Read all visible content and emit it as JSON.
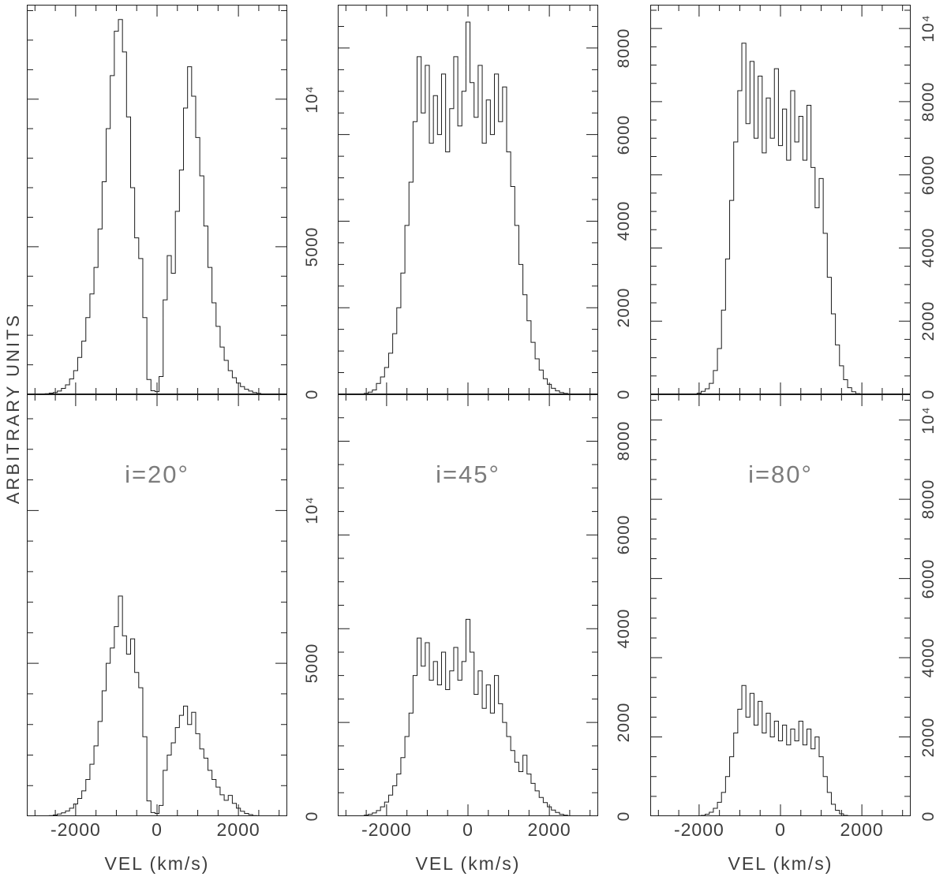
{
  "figure": {
    "ylabel": "ARBITRARY UNITS",
    "xlabel": "VEL (km/s)",
    "xlim": [
      -3200,
      3200
    ],
    "x_major": 2000,
    "x_minor": 500,
    "x_ticks": [
      {
        "value": -2000,
        "label": "-2000"
      },
      {
        "value": 0,
        "label": "0"
      },
      {
        "value": 2000,
        "label": "2000"
      }
    ],
    "line_color": "#1b1b1b",
    "text_color": "#3d3d3d",
    "annotation_color": "#7c7c7c"
  },
  "chart_data": {
    "type": "line",
    "title": "",
    "xlabel": "VEL (km/s)",
    "ylabel": "ARBITRARY UNITS",
    "x_start": -3000,
    "x_step": 100,
    "xlim": [
      -3200,
      3200
    ],
    "grid": false,
    "legend": false,
    "panels": [
      {
        "name": "i=20 high-flux profile",
        "row": 0,
        "col": 0,
        "annotation": "",
        "ylim": [
          0,
          13200
        ],
        "ymax": 13200,
        "y_major": 5000,
        "y_minor": 1000,
        "y_ticks": [
          {
            "value": 0,
            "label": "0"
          },
          {
            "value": 5000,
            "label": "5000"
          },
          {
            "value": 10000,
            "label": "10⁴"
          }
        ],
        "values": [
          0,
          0,
          0,
          20,
          40,
          60,
          110,
          200,
          320,
          520,
          800,
          1250,
          1800,
          2600,
          3400,
          4300,
          5600,
          7200,
          9000,
          10800,
          12300,
          12700,
          11600,
          9400,
          7000,
          5300,
          4600,
          2600,
          500,
          120,
          90,
          600,
          3200,
          4700,
          4100,
          6200,
          7600,
          9700,
          11100,
          10100,
          8700,
          7400,
          5700,
          4300,
          3100,
          2300,
          1600,
          1150,
          800,
          560,
          380,
          260,
          170,
          110,
          60,
          30,
          10,
          0,
          0,
          0,
          0
        ]
      },
      {
        "name": "i=45 high-flux profile",
        "row": 0,
        "col": 1,
        "annotation": "",
        "ylim": [
          0,
          9000
        ],
        "ymax": 9000,
        "y_major": 2000,
        "y_minor": 500,
        "y_ticks": [
          {
            "value": 0,
            "label": "0"
          },
          {
            "value": 2000,
            "label": "2000"
          },
          {
            "value": 4000,
            "label": "4000"
          },
          {
            "value": 6000,
            "label": "6000"
          },
          {
            "value": 8000,
            "label": "8000"
          }
        ],
        "values": [
          0,
          0,
          0,
          0,
          0,
          20,
          50,
          100,
          250,
          400,
          620,
          950,
          1400,
          2000,
          2800,
          3900,
          4900,
          6300,
          7800,
          6500,
          7600,
          5800,
          6900,
          6000,
          7400,
          5600,
          6600,
          7800,
          6200,
          7000,
          8600,
          7200,
          6400,
          7600,
          5800,
          6800,
          6000,
          7400,
          6300,
          7100,
          5600,
          4800,
          3900,
          3000,
          2300,
          1700,
          1200,
          820,
          560,
          360,
          230,
          140,
          80,
          40,
          20,
          0,
          0,
          0,
          0,
          0,
          0
        ]
      },
      {
        "name": "i=80 high-flux profile",
        "row": 0,
        "col": 2,
        "annotation": "",
        "ylim": [
          0,
          10650
        ],
        "ymax": 10650,
        "y_major": 2000,
        "y_minor": 500,
        "y_ticks": [
          {
            "value": 0,
            "label": "0"
          },
          {
            "value": 2000,
            "label": "2000"
          },
          {
            "value": 4000,
            "label": "4000"
          },
          {
            "value": 6000,
            "label": "6000"
          },
          {
            "value": 8000,
            "label": "8000"
          },
          {
            "value": 10000,
            "label": "10⁴"
          }
        ],
        "values": [
          0,
          0,
          0,
          0,
          0,
          0,
          0,
          0,
          0,
          0,
          30,
          80,
          150,
          300,
          650,
          1250,
          2300,
          3700,
          5300,
          6900,
          8300,
          9600,
          7400,
          9100,
          7000,
          8700,
          6600,
          8100,
          7000,
          8900,
          6800,
          7800,
          6400,
          8300,
          6900,
          7600,
          6400,
          7900,
          6200,
          5100,
          5900,
          4400,
          3200,
          2200,
          1350,
          780,
          400,
          180,
          70,
          20,
          0,
          0,
          0,
          0,
          0,
          0,
          0,
          0,
          0,
          0,
          0
        ]
      },
      {
        "name": "i=20 low-flux profile",
        "row": 1,
        "col": 0,
        "annotation": "i=20°",
        "ylim": [
          0,
          13800
        ],
        "ymax": 13800,
        "y_major": 5000,
        "y_minor": 1000,
        "y_ticks": [
          {
            "value": 0,
            "label": "0"
          },
          {
            "value": 5000,
            "label": "5000"
          },
          {
            "value": 10000,
            "label": "10⁴"
          }
        ],
        "values": [
          0,
          0,
          0,
          0,
          20,
          40,
          70,
          110,
          170,
          260,
          400,
          580,
          830,
          1200,
          1700,
          2300,
          3100,
          4100,
          5000,
          5500,
          6200,
          7200,
          5900,
          5300,
          5800,
          4700,
          4200,
          2600,
          500,
          120,
          90,
          350,
          1500,
          2000,
          2400,
          2900,
          3300,
          3600,
          3000,
          3400,
          2700,
          2200,
          1900,
          1500,
          1200,
          950,
          700,
          520,
          680,
          420,
          260,
          160,
          90,
          50,
          20,
          0,
          0,
          0,
          0,
          0,
          0
        ]
      },
      {
        "name": "i=45 low-flux profile",
        "row": 1,
        "col": 1,
        "annotation": "i=45°",
        "ylim": [
          0,
          9000
        ],
        "ymax": 9000,
        "y_major": 2000,
        "y_minor": 500,
        "y_ticks": [
          {
            "value": 0,
            "label": "0"
          },
          {
            "value": 2000,
            "label": "2000"
          },
          {
            "value": 4000,
            "label": "4000"
          },
          {
            "value": 6000,
            "label": "6000"
          },
          {
            "value": 8000,
            "label": "8000"
          }
        ],
        "values": [
          0,
          0,
          0,
          0,
          0,
          20,
          40,
          70,
          120,
          200,
          300,
          450,
          650,
          900,
          1250,
          1700,
          2200,
          3000,
          3800,
          3200,
          3700,
          2900,
          3300,
          2800,
          3500,
          2700,
          3100,
          3600,
          2900,
          3300,
          4200,
          3500,
          2600,
          3100,
          2300,
          2800,
          2200,
          3000,
          2400,
          2000,
          1700,
          1400,
          1150,
          950,
          1300,
          900,
          700,
          540,
          400,
          290,
          200,
          130,
          80,
          40,
          20,
          0,
          0,
          0,
          0,
          0,
          0
        ]
      },
      {
        "name": "i=80 low-flux profile",
        "row": 1,
        "col": 2,
        "annotation": "i=80°",
        "ylim": [
          0,
          10650
        ],
        "ymax": 10650,
        "y_major": 2000,
        "y_minor": 500,
        "y_ticks": [
          {
            "value": 0,
            "label": "0"
          },
          {
            "value": 2000,
            "label": "2000"
          },
          {
            "value": 4000,
            "label": "4000"
          },
          {
            "value": 6000,
            "label": "6000"
          },
          {
            "value": 8000,
            "label": "8000"
          },
          {
            "value": 10000,
            "label": "10⁴"
          }
        ],
        "values": [
          0,
          0,
          0,
          0,
          0,
          0,
          0,
          0,
          0,
          0,
          0,
          20,
          50,
          100,
          200,
          350,
          600,
          1000,
          1500,
          2100,
          2700,
          3300,
          2500,
          3100,
          2300,
          2900,
          2100,
          2600,
          2000,
          2400,
          1900,
          2300,
          1800,
          2200,
          1900,
          2400,
          1800,
          2200,
          1700,
          2000,
          1500,
          1000,
          600,
          300,
          150,
          60,
          20,
          0,
          0,
          0,
          0,
          0,
          0,
          0,
          0,
          0,
          0,
          0,
          0,
          0,
          0
        ]
      }
    ]
  }
}
